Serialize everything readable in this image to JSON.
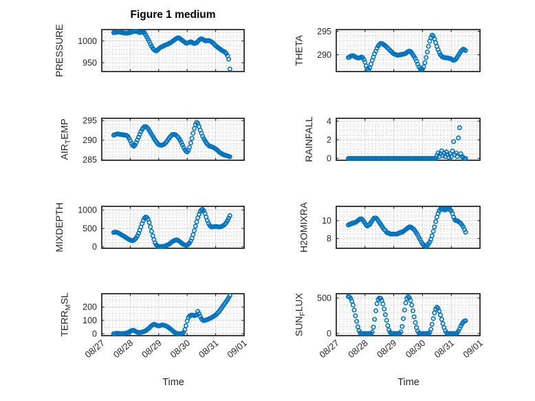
{
  "title": "Figure 1 medium",
  "xlabel": "Time",
  "x_ticks": [
    "08/27",
    "08/28",
    "08/29",
    "08/30",
    "08/31",
    "09/01"
  ],
  "style": {
    "marker_color": "#0072BD",
    "axis_color": "#1f1f1f",
    "tick_label_color": "#262626",
    "major_grid_color": "#d8d8d8",
    "minor_grid_color": "#bdbdbd",
    "background": "#ffffff"
  },
  "chart_data": [
    {
      "id": "pressure",
      "type": "scatter",
      "row": 0,
      "col": 0,
      "label": "PRESSURE",
      "label_parts": [
        {
          "t": "PRESSURE"
        }
      ],
      "ylim": [
        930,
        1026
      ],
      "yticks": [
        950,
        1000
      ],
      "yminor": 10,
      "x_start_hours": 10,
      "x_step_hours": 1,
      "x_axis_days": [
        "08/27",
        "09/01"
      ],
      "values": [
        1019,
        1019,
        1020,
        1020,
        1021,
        1020,
        1020,
        1019,
        1019,
        1018,
        1018,
        1018,
        1018,
        1019,
        1019,
        1020,
        1021,
        1022,
        1022,
        1022,
        1021,
        1020,
        1019,
        1020,
        1020,
        1019,
        1019,
        1014,
        1009,
        1004,
        999,
        993,
        988,
        983,
        980,
        978,
        977,
        979,
        982,
        984,
        986,
        987,
        988,
        990,
        991,
        992,
        993,
        995,
        996,
        998,
        1000,
        1002,
        1004,
        1006,
        1007,
        1007,
        1005,
        1003,
        1001,
        999,
        997,
        995,
        995,
        996,
        997,
        998,
        997,
        995,
        994,
        995,
        996,
        999,
        1002,
        1004,
        1005,
        1004,
        1002,
        1001,
        1000,
        1001,
        1001,
        1000,
        999,
        997,
        995,
        992,
        989,
        987,
        985,
        983,
        981,
        979,
        977,
        976,
        974,
        971,
        966,
        958,
        936
      ]
    },
    {
      "id": "theta",
      "type": "scatter",
      "row": 0,
      "col": 1,
      "label": "THETA",
      "label_parts": [
        {
          "t": "THETA"
        }
      ],
      "ylim": [
        286.4,
        295.4
      ],
      "yticks": [
        290,
        295
      ],
      "yminor": 1,
      "x_start_hours": 10,
      "x_step_hours": 1,
      "x_axis_days": [
        "08/27",
        "09/01"
      ],
      "values": [
        289.4,
        289.5,
        289.7,
        289.8,
        289.8,
        289.7,
        289.5,
        289.4,
        289.3,
        289.3,
        289.4,
        289.5,
        289.4,
        289.0,
        288.4,
        287.6,
        287.0,
        286.8,
        287.2,
        288.0,
        288.8,
        289.5,
        290.2,
        290.8,
        291.4,
        291.9,
        292.2,
        292.4,
        292.4,
        292.3,
        292.1,
        291.9,
        291.7,
        291.4,
        291.2,
        290.9,
        290.7,
        290.4,
        290.2,
        290.1,
        290.0,
        289.9,
        289.9,
        290.0,
        290.0,
        290.1,
        290.1,
        290.2,
        290.3,
        290.5,
        290.7,
        290.8,
        290.7,
        290.4,
        290.0,
        289.6,
        289.2,
        288.6,
        288.0,
        287.4,
        287.0,
        286.8,
        286.9,
        287.4,
        288.3,
        289.4,
        290.6,
        291.8,
        292.9,
        293.7,
        294.2,
        294.0,
        293.4,
        292.6,
        291.8,
        291.1,
        290.5,
        290.0,
        289.7,
        289.5,
        289.4,
        289.4,
        289.3,
        289.3,
        289.2,
        289.2,
        289.1,
        288.9,
        288.8,
        288.9,
        289.1,
        289.5,
        289.9,
        290.3,
        290.7,
        291.0,
        291.2,
        291.1,
        290.9
      ]
    },
    {
      "id": "air_temp",
      "type": "scatter",
      "row": 1,
      "col": 0,
      "label": "AIR_TEMP",
      "label_parts": [
        {
          "t": "AIR"
        },
        {
          "t": "T",
          "sub": true
        },
        {
          "t": "EMP"
        }
      ],
      "ylim": [
        284.9,
        295.6
      ],
      "yticks": [
        285,
        290,
        295
      ],
      "yminor": 1,
      "x_start_hours": 10,
      "x_step_hours": 1,
      "x_axis_days": [
        "08/27",
        "09/01"
      ],
      "values": [
        291.3,
        291.4,
        291.5,
        291.6,
        291.6,
        291.5,
        291.5,
        291.4,
        291.4,
        291.3,
        291.3,
        291.2,
        291.0,
        290.5,
        289.9,
        289.2,
        288.7,
        288.5,
        288.8,
        289.4,
        290.1,
        290.8,
        291.5,
        292.2,
        292.8,
        293.2,
        293.5,
        293.5,
        293.3,
        293.0,
        292.5,
        292.0,
        291.5,
        291.0,
        290.5,
        290.0,
        289.6,
        289.2,
        288.9,
        288.8,
        288.7,
        288.8,
        288.9,
        289.1,
        289.4,
        289.8,
        290.2,
        290.6,
        291.0,
        291.3,
        291.5,
        291.5,
        291.4,
        291.2,
        290.9,
        290.5,
        290.0,
        289.4,
        288.8,
        288.2,
        287.6,
        287.2,
        287.0,
        287.4,
        288.2,
        289.3,
        290.5,
        291.8,
        293.0,
        294.0,
        294.6,
        294.3,
        293.5,
        292.6,
        291.8,
        291.0,
        290.4,
        289.9,
        289.4,
        289.0,
        288.7,
        288.5,
        288.4,
        288.3,
        288.2,
        288.0,
        287.8,
        287.6,
        287.3,
        287.0,
        286.8,
        286.6,
        286.4,
        286.3,
        286.2,
        286.1,
        286.0,
        285.9,
        285.8
      ]
    },
    {
      "id": "rainfall",
      "type": "scatter",
      "row": 1,
      "col": 1,
      "label": "RAINFALL",
      "label_parts": [
        {
          "t": "RAINFALL"
        }
      ],
      "ylim": [
        -0.2,
        4.3
      ],
      "yticks": [
        0,
        2,
        4
      ],
      "yminor": 0.5,
      "x_start_hours": 10,
      "x_step_hours": 1,
      "x_axis_days": [
        "08/27",
        "09/01"
      ],
      "values": [
        0,
        0,
        0,
        0,
        0,
        0,
        0,
        0,
        0,
        0,
        0,
        0,
        0,
        0,
        0,
        0,
        0,
        0,
        0,
        0,
        0,
        0,
        0,
        0,
        0,
        0,
        0,
        0,
        0,
        0,
        0,
        0,
        0,
        0,
        0,
        0,
        0,
        0,
        0,
        0,
        0,
        0,
        0,
        0,
        0,
        0,
        0,
        0,
        0,
        0,
        0,
        0,
        0,
        0,
        0,
        0,
        0,
        0,
        0,
        0,
        0,
        0,
        0,
        0,
        0,
        0,
        0,
        0,
        0,
        0,
        0,
        0,
        0,
        0,
        0.3,
        0.6,
        0.2,
        0.5,
        0.8,
        0.3,
        0.6,
        0.2,
        0.7,
        0.4,
        0.1,
        0.5,
        0.2,
        0.8,
        1.8,
        0.4,
        0.6,
        0.2,
        2.2,
        3.3,
        0.5,
        0.2,
        0.1,
        0,
        0
      ]
    },
    {
      "id": "mixdepth",
      "type": "scatter",
      "row": 2,
      "col": 0,
      "label": "MIXDEPTH",
      "label_parts": [
        {
          "t": "MIXDEPTH"
        }
      ],
      "ylim": [
        -40,
        1100
      ],
      "yticks": [
        0,
        500,
        1000
      ],
      "yminor": 100,
      "x_start_hours": 10,
      "x_step_hours": 1,
      "x_axis_days": [
        "08/27",
        "09/01"
      ],
      "values": [
        390,
        400,
        400,
        390,
        375,
        360,
        340,
        320,
        300,
        280,
        260,
        240,
        220,
        200,
        185,
        175,
        170,
        180,
        205,
        245,
        300,
        370,
        450,
        540,
        630,
        715,
        780,
        810,
        800,
        750,
        660,
        545,
        420,
        300,
        195,
        110,
        50,
        20,
        10,
        5,
        5,
        10,
        15,
        20,
        30,
        45,
        60,
        80,
        105,
        130,
        150,
        170,
        185,
        190,
        180,
        160,
        135,
        110,
        85,
        65,
        50,
        45,
        50,
        70,
        105,
        160,
        235,
        330,
        440,
        560,
        680,
        790,
        885,
        960,
        1005,
        1015,
        980,
        905,
        810,
        715,
        635,
        580,
        550,
        540,
        545,
        550,
        555,
        550,
        545,
        540,
        545,
        555,
        570,
        590,
        620,
        660,
        715,
        780,
        845
      ]
    },
    {
      "id": "h2omixra",
      "type": "scatter",
      "row": 2,
      "col": 1,
      "label": "H2OMIXRA",
      "label_parts": [
        {
          "t": "H2OMIXRA"
        }
      ],
      "ylim": [
        6.9,
        11.6
      ],
      "yticks": [
        8,
        10
      ],
      "yminor": 0.5,
      "x_start_hours": 10,
      "x_step_hours": 1,
      "x_axis_days": [
        "08/27",
        "09/01"
      ],
      "values": [
        9.5,
        9.6,
        9.6,
        9.7,
        9.7,
        9.8,
        9.8,
        9.9,
        10.0,
        10.1,
        10.2,
        10.2,
        10.1,
        9.9,
        9.7,
        9.5,
        9.4,
        9.5,
        9.6,
        9.8,
        10.0,
        10.2,
        10.3,
        10.3,
        10.2,
        10.0,
        9.8,
        9.6,
        9.4,
        9.2,
        9.0,
        8.9,
        8.7,
        8.6,
        8.6,
        8.5,
        8.5,
        8.5,
        8.5,
        8.5,
        8.5,
        8.5,
        8.6,
        8.6,
        8.7,
        8.7,
        8.8,
        8.9,
        9.0,
        9.1,
        9.2,
        9.3,
        9.3,
        9.2,
        9.1,
        9.0,
        8.8,
        8.6,
        8.4,
        8.1,
        7.9,
        7.6,
        7.4,
        7.3,
        7.2,
        7.1,
        7.2,
        7.4,
        7.6,
        7.9,
        8.3,
        8.8,
        9.3,
        9.9,
        10.4,
        10.8,
        11.1,
        11.3,
        11.3,
        11.3,
        11.2,
        11.2,
        11.3,
        11.3,
        11.3,
        11.2,
        11.1,
        10.8,
        10.4,
        10.1,
        10.0,
        10.0,
        9.9,
        9.8,
        9.7,
        9.5,
        9.3,
        9.0,
        8.7
      ]
    },
    {
      "id": "terr_msl",
      "type": "scatter",
      "row": 3,
      "col": 0,
      "label": "TERR_MSL",
      "label_parts": [
        {
          "t": "TERR"
        },
        {
          "t": "M",
          "sub": true
        },
        {
          "t": "SL"
        }
      ],
      "ylim": [
        -15,
        300
      ],
      "yticks": [
        0,
        100,
        200
      ],
      "yminor": 50,
      "x_start_hours": 10,
      "x_step_hours": 1,
      "x_axis_days": [
        "08/27",
        "09/01"
      ],
      "values": [
        0,
        0,
        2,
        3,
        2,
        1,
        0,
        0,
        1,
        2,
        3,
        5,
        8,
        12,
        18,
        22,
        25,
        24,
        20,
        15,
        10,
        8,
        8,
        10,
        12,
        15,
        18,
        22,
        28,
        35,
        43,
        52,
        60,
        66,
        70,
        68,
        64,
        60,
        58,
        60,
        63,
        65,
        64,
        62,
        58,
        54,
        48,
        42,
        35,
        28,
        20,
        12,
        6,
        2,
        0,
        0,
        0,
        0,
        2,
        10,
        30,
        60,
        95,
        120,
        132,
        138,
        140,
        138,
        135,
        138,
        142,
        168,
        150,
        130,
        112,
        102,
        98,
        100,
        103,
        106,
        110,
        114,
        118,
        123,
        128,
        134,
        140,
        148,
        158,
        168,
        180,
        192,
        205,
        218,
        230,
        242,
        256,
        270,
        285
      ]
    },
    {
      "id": "sun_flux",
      "type": "scatter",
      "row": 3,
      "col": 1,
      "label": "SUN_FLUX",
      "label_parts": [
        {
          "t": "SUN"
        },
        {
          "t": "F",
          "sub": true
        },
        {
          "t": "LUX"
        }
      ],
      "ylim": [
        -30,
        560
      ],
      "yticks": [
        0,
        500
      ],
      "yminor": 100,
      "x_start_hours": 10,
      "x_step_hours": 1,
      "x_axis_days": [
        "08/27",
        "09/01"
      ],
      "values": [
        520,
        515,
        495,
        455,
        400,
        330,
        250,
        170,
        95,
        40,
        10,
        0,
        0,
        0,
        0,
        0,
        0,
        0,
        0,
        0,
        20,
        90,
        200,
        320,
        420,
        480,
        500,
        495,
        465,
        415,
        345,
        265,
        185,
        110,
        50,
        15,
        0,
        0,
        0,
        0,
        0,
        0,
        0,
        0,
        25,
        100,
        210,
        330,
        430,
        495,
        520,
        505,
        465,
        400,
        320,
        235,
        155,
        85,
        35,
        8,
        0,
        0,
        0,
        0,
        0,
        0,
        0,
        0,
        15,
        60,
        130,
        210,
        290,
        345,
        370,
        355,
        315,
        260,
        200,
        140,
        85,
        40,
        12,
        0,
        0,
        0,
        0,
        0,
        0,
        0,
        0,
        10,
        35,
        70,
        105,
        135,
        160,
        175,
        180
      ]
    }
  ]
}
